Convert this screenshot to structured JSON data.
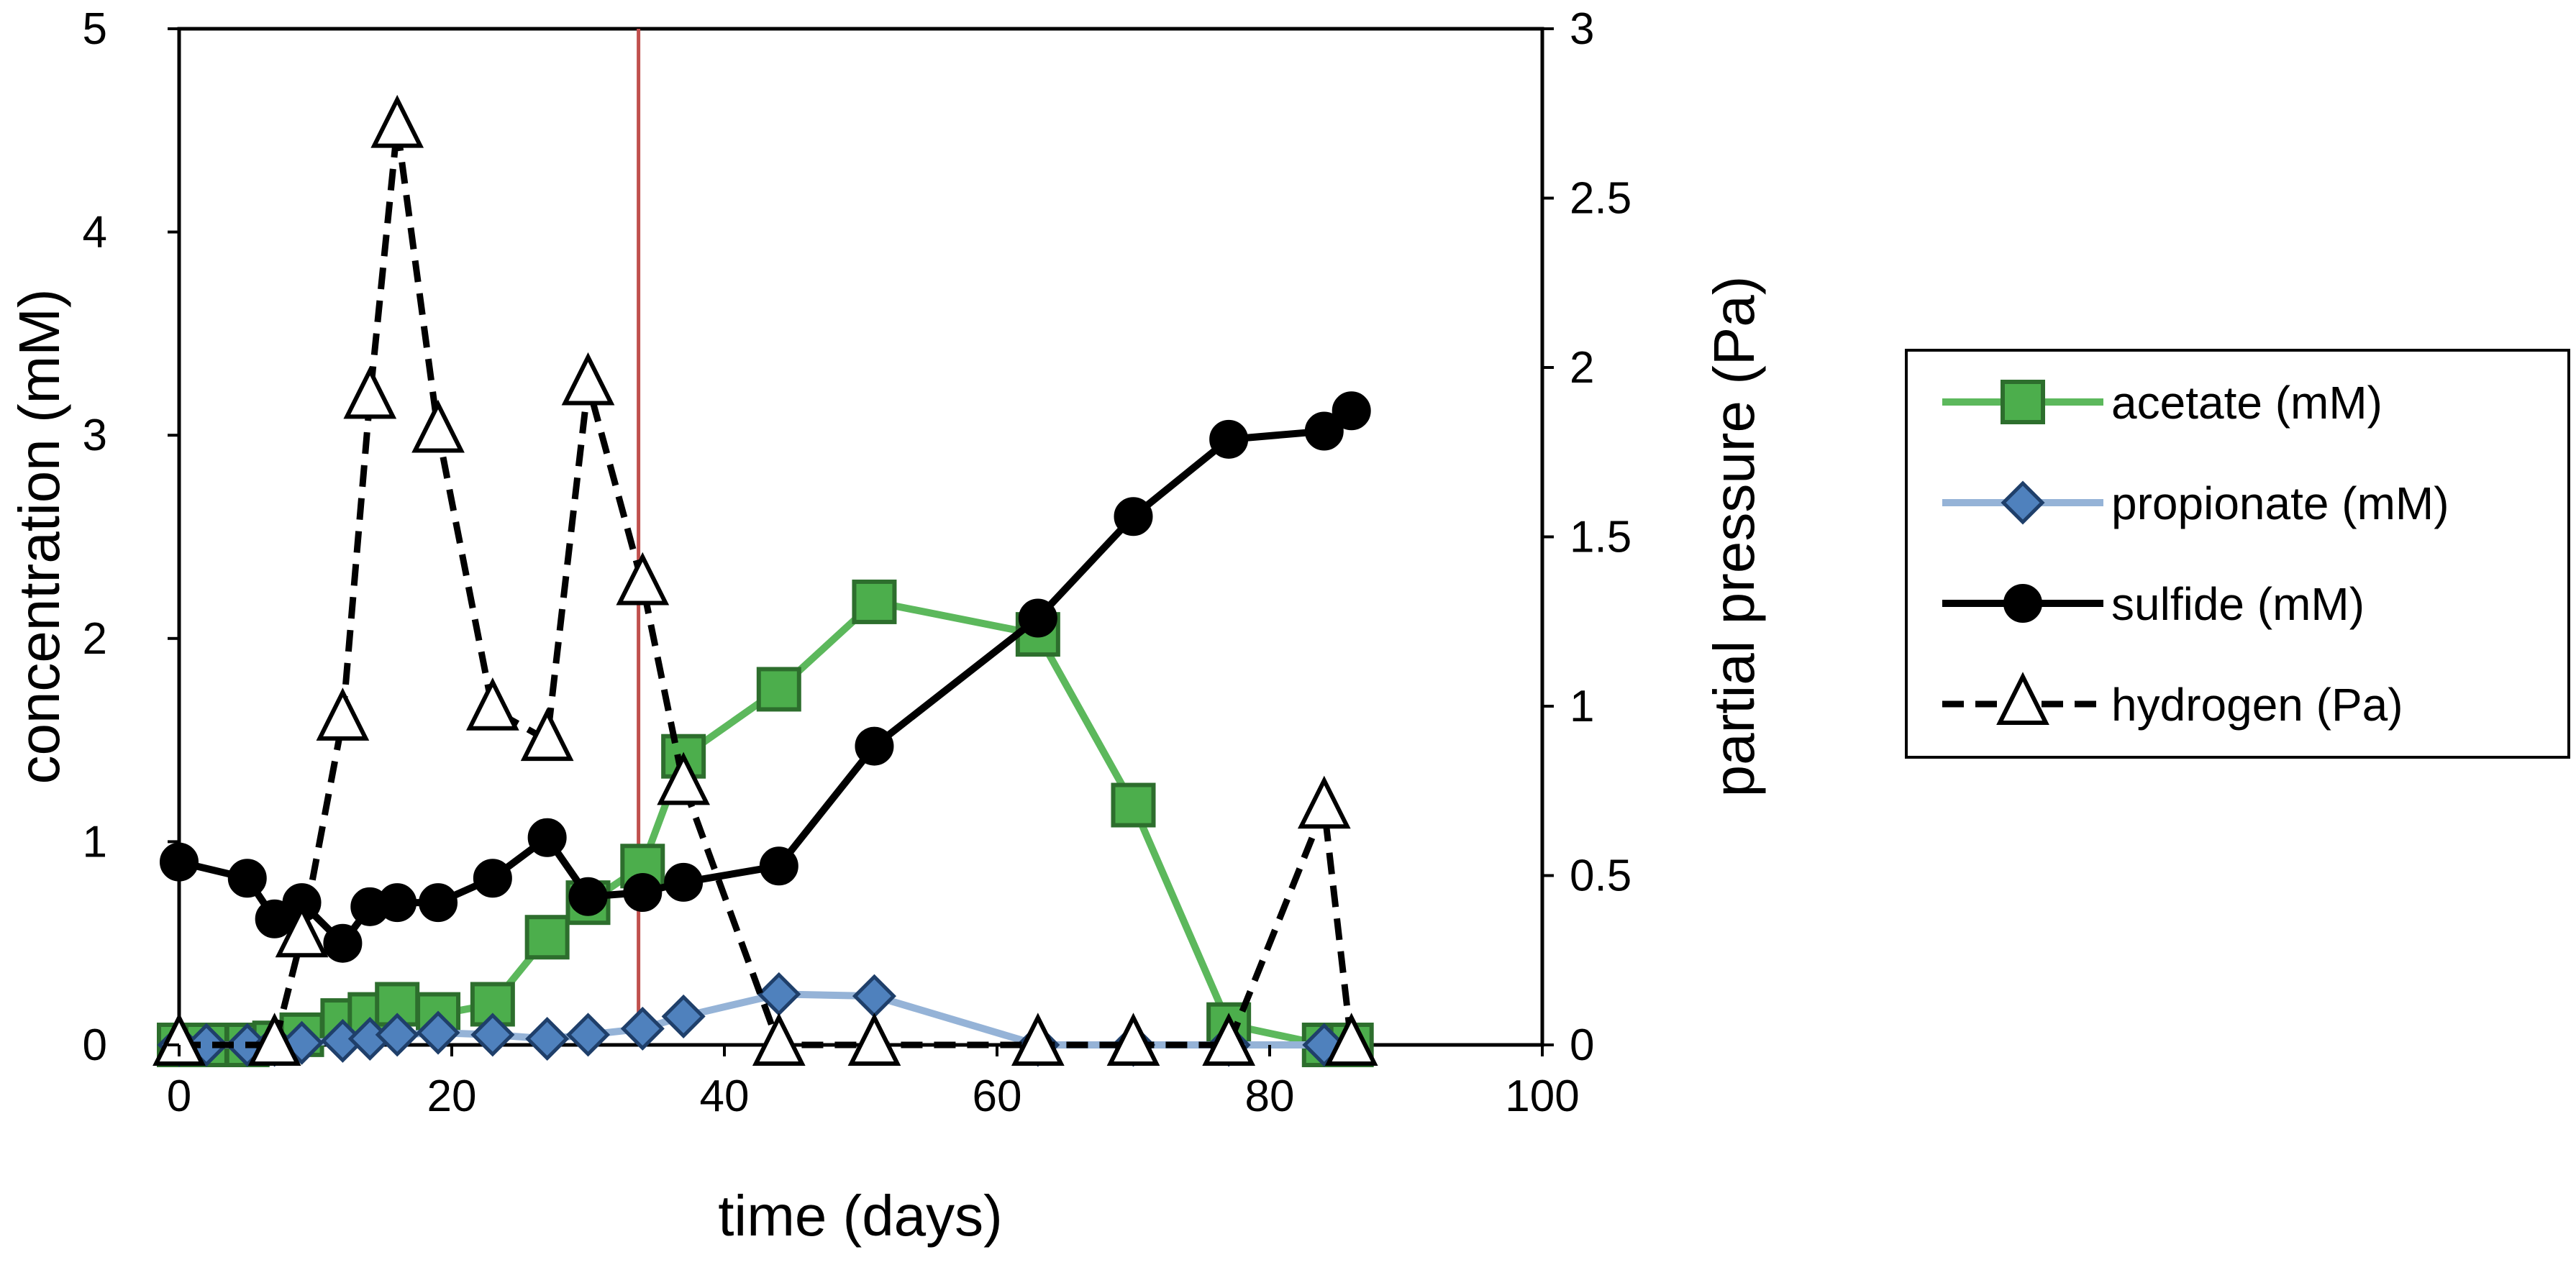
{
  "chart_data": {
    "type": "line",
    "title": "",
    "xlabel": "time (days)",
    "ylabel_left": "concentration (mM)",
    "ylabel_right": "partial pressure (Pa)",
    "xlim": [
      0,
      100
    ],
    "ylim_left": [
      0,
      5
    ],
    "ylim_right": [
      0,
      3
    ],
    "x_ticks": [
      "0",
      "20",
      "40",
      "60",
      "80",
      "100"
    ],
    "y_left_ticks": [
      "0",
      "1",
      "2",
      "3",
      "4",
      "5"
    ],
    "y_right_ticks": [
      "0",
      "0.5",
      "1",
      "1.5",
      "2",
      "2.5",
      "3"
    ],
    "grid": false,
    "legend_position": "right",
    "vertical_marker": {
      "x": 33.7,
      "color": "#c0504d"
    },
    "series": [
      {
        "name": "acetate (mM)",
        "axis": "left",
        "color": "#5cb85c",
        "marker": "square",
        "marker_fill": "#4cae4c",
        "marker_edge": "#2d6e2d",
        "dash": "solid",
        "x": [
          0,
          2,
          5,
          7,
          9,
          12,
          14,
          16,
          19,
          23,
          27,
          30,
          34,
          37,
          44,
          51,
          63,
          70,
          77,
          84,
          86
        ],
        "y": [
          0,
          0,
          0,
          0.01,
          0.05,
          0.12,
          0.15,
          0.2,
          0.15,
          0.2,
          0.53,
          0.7,
          0.88,
          1.42,
          1.75,
          2.18,
          2.02,
          1.18,
          0.1,
          0,
          0
        ]
      },
      {
        "name": "propionate (mM)",
        "axis": "left",
        "color": "#95b3d7",
        "marker": "diamond",
        "marker_fill": "#4f81bd",
        "marker_edge": "#1f3f6a",
        "dash": "solid",
        "x": [
          0,
          2,
          5,
          7,
          9,
          12,
          14,
          16,
          19,
          23,
          27,
          30,
          34,
          37,
          44,
          51,
          63,
          70,
          77,
          84
        ],
        "y": [
          0,
          0,
          0,
          0,
          0.01,
          0.02,
          0.03,
          0.05,
          0.06,
          0.05,
          0.03,
          0.05,
          0.08,
          0.14,
          0.25,
          0.24,
          0,
          0,
          0,
          0
        ]
      },
      {
        "name": "sulfide (mM)",
        "axis": "left",
        "color": "#000000",
        "marker": "circle",
        "marker_fill": "#000000",
        "marker_edge": "#000000",
        "dash": "solid",
        "x": [
          0,
          5,
          7,
          9,
          12,
          14,
          16,
          19,
          23,
          27,
          30,
          34,
          37,
          44,
          51,
          63,
          70,
          77,
          84,
          86
        ],
        "y": [
          0.9,
          0.82,
          0.62,
          0.7,
          0.5,
          0.68,
          0.7,
          0.7,
          0.82,
          1.02,
          0.73,
          0.75,
          0.8,
          0.88,
          1.47,
          2.1,
          2.6,
          2.98,
          3.02,
          3.12
        ]
      },
      {
        "name": "hydrogen (Pa)",
        "axis": "right",
        "color": "#000000",
        "marker": "triangle",
        "marker_fill": "#ffffff",
        "marker_edge": "#000000",
        "dash": "dashed",
        "x": [
          0,
          7,
          9,
          12,
          14,
          16,
          19,
          23,
          27,
          30,
          34,
          37,
          44,
          51,
          63,
          70,
          77,
          84,
          86
        ],
        "y": [
          0,
          0,
          0.32,
          0.96,
          1.91,
          2.71,
          1.81,
          0.99,
          0.9,
          1.95,
          1.36,
          0.77,
          0,
          0,
          0,
          0,
          0,
          0.7,
          0
        ]
      }
    ]
  }
}
